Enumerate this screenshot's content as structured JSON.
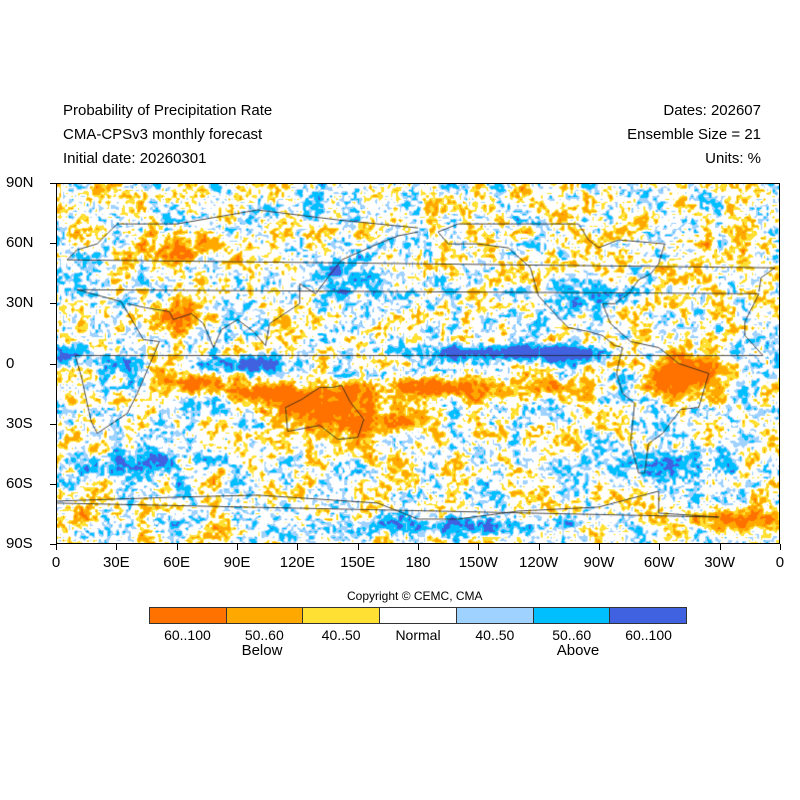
{
  "header": {
    "title": "Probability of Precipitation Rate",
    "model": "CMA-CPSv3 monthly forecast",
    "initial_date": "Initial date: 20260301",
    "dates": "Dates: 202607",
    "ensemble": "Ensemble Size = 21",
    "units": "Units: %"
  },
  "axes": {
    "lat_labels": [
      "90N",
      "60N",
      "30N",
      "0",
      "30S",
      "60S",
      "90S"
    ],
    "lon_labels": [
      "0",
      "30E",
      "60E",
      "90E",
      "120E",
      "150E",
      "180",
      "150W",
      "120W",
      "90W",
      "60W",
      "30W",
      "0"
    ]
  },
  "copyright": "Copyright © CEMC, CMA",
  "legend": {
    "bins": [
      {
        "label": "60..100",
        "color": "#FF7200"
      },
      {
        "label": "50..60",
        "color": "#FFA900"
      },
      {
        "label": "40..50",
        "color": "#FFE033"
      },
      {
        "label": "Normal",
        "color": "#FFFFFF"
      },
      {
        "label": "40..50",
        "color": "#A0D2FF"
      },
      {
        "label": "50..60",
        "color": "#00BFFF"
      },
      {
        "label": "60..100",
        "color": "#4062E0"
      }
    ],
    "below_label": "Below",
    "above_label": "Above"
  }
}
